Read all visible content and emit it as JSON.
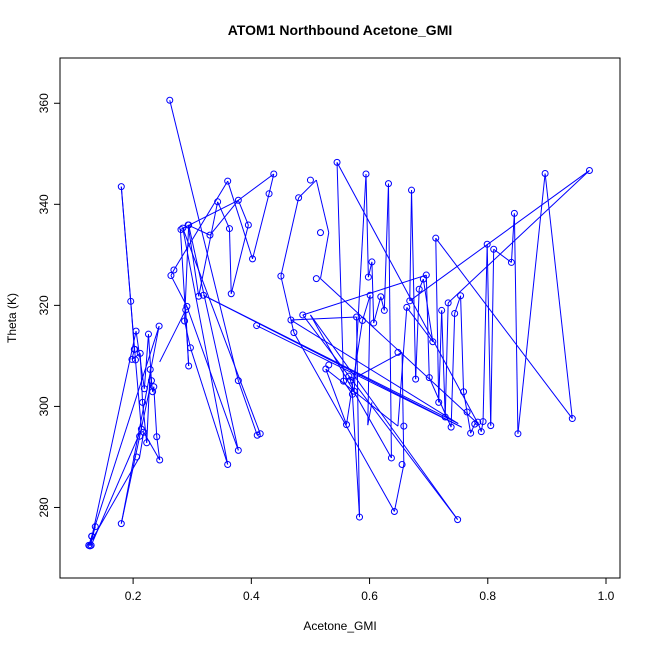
{
  "chart_data": {
    "type": "line",
    "title": "ATOM1 Northbound Acetone_GMI",
    "xlabel": "Acetone_GMI",
    "ylabel": "Theta (K)",
    "xlim": [
      0.1,
      1.0
    ],
    "ylim": [
      270,
      365
    ],
    "xticks": [
      0.2,
      0.4,
      0.6,
      0.8,
      1.0
    ],
    "xtick_labels": [
      "0.2",
      "0.4",
      "0.6",
      "0.8",
      "1.0"
    ],
    "yticks": [
      280,
      300,
      320,
      340,
      360
    ],
    "ytick_labels": [
      "280",
      "300",
      "320",
      "340",
      "360"
    ],
    "grid": false,
    "colors": {
      "series": "#0000ff",
      "axes": "#000000"
    },
    "series": [
      {
        "name": "",
        "marker": "open-circle",
        "x": [
          0.18,
          0.196,
          0.202,
          0.203,
          0.198,
          0.204,
          0.212,
          0.216,
          0.223,
          0.229,
          0.231,
          0.233,
          0.235,
          0.24,
          0.245,
          0.218,
          0.211,
          0.206,
          0.214,
          0.125,
          0.13,
          0.136,
          0.127,
          0.205,
          0.219,
          0.226,
          0.244,
          0.18,
          0.13,
          0.129
        ],
        "y": [
          343.5,
          320.8,
          311.3,
          311.3,
          309.3,
          309.2,
          310.5,
          300.8,
          292.8,
          307.3,
          305.1,
          302.9,
          303.9,
          294.0,
          289.4,
          294.9,
          294.1,
          290.0,
          295.5,
          272.5,
          274.3,
          276.2,
          272.4,
          314.9,
          303.5,
          314.3,
          315.9,
          276.8,
          274.3,
          272.5
        ]
      },
      {
        "name": "",
        "marker": "open-circle",
        "x": [
          0.262,
          0.378,
          0.41,
          0.415,
          0.36,
          0.378,
          0.36,
          0.264,
          0.269,
          0.284,
          0.287,
          0.291,
          0.297,
          0.294,
          0.311,
          0.294,
          0.281,
          0.289,
          0.293,
          0.319,
          0.33,
          0.343,
          0.363,
          0.378,
          0.395,
          0.402,
          0.409,
          0.43,
          0.438,
          0.366,
          0.45,
          0.467,
          0.472,
          0.48,
          0.487,
          0.5,
          0.51,
          0.517,
          0.526,
          0.531,
          0.545,
          0.556,
          0.561,
          0.565,
          0.568,
          0.571,
          0.574,
          0.578,
          0.583,
          0.588,
          0.594,
          0.598,
          0.601,
          0.604,
          0.607,
          0.619,
          0.625,
          0.632,
          0.637,
          0.642,
          0.648,
          0.655,
          0.658,
          0.663,
          0.668,
          0.671,
          0.678,
          0.684,
          0.691,
          0.696,
          0.701,
          0.707,
          0.712,
          0.717,
          0.722,
          0.728,
          0.733,
          0.738,
          0.744,
          0.749,
          0.754,
          0.759,
          0.765,
          0.771,
          0.778,
          0.783,
          0.789,
          0.792,
          0.799,
          0.805,
          0.81,
          0.84,
          0.845,
          0.851,
          0.897,
          0.943,
          0.972
        ],
        "y": [
          360.6,
          305.1,
          294.3,
          294.6,
          288.5,
          291.3,
          344.6,
          325.9,
          327.0,
          335.3,
          316.9,
          319.8,
          311.6,
          335.9,
          321.8,
          308.0,
          335.0,
          319.1,
          335.9,
          322.0,
          333.9,
          340.5,
          335.2,
          340.8,
          335.9,
          329.2,
          316.0,
          342.1,
          346.0,
          322.3,
          325.8,
          317.1,
          314.6,
          341.3,
          318.1,
          344.8,
          325.3,
          334.4,
          307.4,
          308.2,
          348.3,
          305.0,
          296.4,
          306.0,
          305.2,
          302.4,
          303.0,
          317.7,
          278.1,
          317.0,
          346.0,
          325.6,
          322.0,
          328.6,
          316.5,
          321.7,
          319.0,
          344.1,
          289.8,
          279.2,
          310.7,
          288.5,
          296.1,
          319.6,
          320.9,
          342.8,
          305.4,
          323.2,
          325.2,
          326.0,
          305.7,
          312.8,
          333.3,
          300.8,
          319.0,
          297.9,
          320.5,
          295.9,
          318.4,
          277.6,
          321.9,
          302.9,
          298.9,
          294.7,
          296.5,
          296.9,
          295.0,
          297.0,
          332.1,
          296.2,
          331.1,
          328.5,
          338.2,
          294.6,
          346.1,
          297.6,
          346.7
        ]
      }
    ],
    "segments": [
      [
        0.18,
        343.5,
        0.196,
        320.8
      ],
      [
        0.196,
        320.8,
        0.202,
        311.3
      ],
      [
        0.202,
        311.3,
        0.198,
        309.3
      ],
      [
        0.198,
        309.3,
        0.212,
        310.5
      ],
      [
        0.212,
        310.5,
        0.216,
        300.8
      ],
      [
        0.216,
        300.8,
        0.223,
        292.8
      ],
      [
        0.223,
        292.8,
        0.229,
        307.3
      ],
      [
        0.229,
        307.3,
        0.233,
        302.9
      ],
      [
        0.233,
        302.9,
        0.235,
        303.9
      ],
      [
        0.235,
        303.9,
        0.24,
        294.0
      ],
      [
        0.24,
        294.0,
        0.245,
        289.4
      ],
      [
        0.245,
        289.4,
        0.218,
        294.9
      ],
      [
        0.218,
        294.9,
        0.211,
        290.0
      ],
      [
        0.211,
        290.0,
        0.125,
        272.5
      ],
      [
        0.125,
        272.5,
        0.13,
        274.3
      ],
      [
        0.13,
        274.3,
        0.136,
        276.2
      ],
      [
        0.136,
        276.2,
        0.127,
        272.4
      ],
      [
        0.127,
        272.4,
        0.205,
        314.9
      ],
      [
        0.205,
        314.9,
        0.219,
        303.5
      ],
      [
        0.219,
        303.5,
        0.226,
        314.3
      ],
      [
        0.226,
        314.3,
        0.231,
        305.1
      ],
      [
        0.231,
        305.1,
        0.18,
        276.8
      ],
      [
        0.18,
        276.8,
        0.244,
        315.9
      ],
      [
        0.244,
        315.9,
        0.13,
        274.3
      ],
      [
        0.13,
        274.3,
        0.129,
        272.5
      ],
      [
        0.129,
        272.5,
        0.214,
        295.5
      ],
      [
        0.214,
        295.5,
        0.204,
        309.2
      ],
      [
        0.204,
        309.2,
        0.18,
        343.5
      ],
      [
        0.262,
        360.6,
        0.378,
        305.1
      ],
      [
        0.378,
        305.1,
        0.41,
        294.3
      ],
      [
        0.41,
        294.3,
        0.415,
        294.6
      ],
      [
        0.415,
        294.6,
        0.284,
        335.3
      ],
      [
        0.284,
        335.3,
        0.36,
        288.5
      ],
      [
        0.36,
        288.5,
        0.297,
        311.6
      ],
      [
        0.297,
        311.6,
        0.287,
        316.9
      ],
      [
        0.287,
        316.9,
        0.294,
        335.9
      ],
      [
        0.294,
        335.9,
        0.378,
        291.3
      ],
      [
        0.378,
        291.3,
        0.291,
        319.8
      ],
      [
        0.291,
        319.8,
        0.264,
        325.9
      ],
      [
        0.264,
        325.9,
        0.269,
        327.0
      ],
      [
        0.269,
        327.0,
        0.36,
        344.6
      ],
      [
        0.36,
        344.6,
        0.402,
        329.2
      ],
      [
        0.402,
        329.2,
        0.43,
        342.1
      ],
      [
        0.43,
        342.1,
        0.438,
        346.0
      ],
      [
        0.438,
        346.0,
        0.378,
        340.8
      ],
      [
        0.378,
        340.8,
        0.395,
        335.9
      ],
      [
        0.395,
        335.9,
        0.366,
        322.3
      ],
      [
        0.366,
        322.3,
        0.363,
        335.2
      ],
      [
        0.363,
        335.2,
        0.343,
        340.5
      ],
      [
        0.343,
        340.5,
        0.311,
        321.8
      ],
      [
        0.311,
        321.8,
        0.293,
        335.9
      ],
      [
        0.293,
        335.9,
        0.33,
        333.9
      ],
      [
        0.33,
        333.9,
        0.378,
        340.8
      ],
      [
        0.378,
        340.8,
        0.28,
        335.0
      ],
      [
        0.28,
        335.0,
        0.294,
        308.0
      ],
      [
        0.294,
        308.0,
        0.289,
        319.1
      ],
      [
        0.289,
        319.1,
        0.245,
        308.8
      ],
      [
        0.409,
        316.0,
        0.756,
        295.9
      ],
      [
        0.756,
        295.9,
        0.319,
        322.0
      ],
      [
        0.319,
        322.0,
        0.75,
        296.6
      ],
      [
        0.75,
        296.6,
        0.467,
        317.1
      ],
      [
        0.467,
        317.1,
        0.578,
        317.7
      ],
      [
        0.578,
        317.7,
        0.583,
        278.1
      ],
      [
        0.583,
        278.1,
        0.571,
        302.4
      ],
      [
        0.571,
        302.4,
        0.556,
        305.0
      ],
      [
        0.556,
        305.0,
        0.545,
        348.3
      ],
      [
        0.545,
        348.3,
        0.784,
        296.5
      ],
      [
        0.784,
        296.5,
        0.517,
        325.3
      ],
      [
        0.517,
        325.3,
        0.531,
        334.4
      ],
      [
        0.531,
        334.4,
        0.51,
        344.8
      ],
      [
        0.51,
        344.8,
        0.48,
        341.3
      ],
      [
        0.48,
        341.3,
        0.45,
        325.8
      ],
      [
        0.45,
        325.8,
        0.472,
        314.6
      ],
      [
        0.472,
        314.6,
        0.642,
        279.2
      ],
      [
        0.642,
        279.2,
        0.658,
        288.5
      ],
      [
        0.658,
        288.5,
        0.655,
        310.7
      ],
      [
        0.655,
        310.7,
        0.568,
        305.2
      ],
      [
        0.568,
        305.2,
        0.565,
        306.0
      ],
      [
        0.565,
        306.0,
        0.574,
        303.0
      ],
      [
        0.574,
        303.0,
        0.594,
        346.0
      ],
      [
        0.594,
        346.0,
        0.598,
        325.6
      ],
      [
        0.598,
        325.6,
        0.604,
        328.6
      ],
      [
        0.604,
        328.6,
        0.607,
        316.5
      ],
      [
        0.607,
        316.5,
        0.619,
        321.7
      ],
      [
        0.619,
        321.7,
        0.625,
        319.0
      ],
      [
        0.625,
        319.0,
        0.632,
        344.1
      ],
      [
        0.632,
        344.1,
        0.637,
        289.8
      ],
      [
        0.637,
        289.8,
        0.5,
        318.1
      ],
      [
        0.5,
        318.1,
        0.749,
        277.6
      ],
      [
        0.749,
        277.6,
        0.487,
        318.1
      ],
      [
        0.487,
        318.1,
        0.696,
        326.0
      ],
      [
        0.696,
        326.0,
        0.701,
        305.7
      ],
      [
        0.701,
        305.7,
        0.738,
        295.9
      ],
      [
        0.738,
        295.9,
        0.744,
        318.4
      ],
      [
        0.744,
        318.4,
        0.754,
        321.9
      ],
      [
        0.754,
        321.9,
        0.759,
        302.9
      ],
      [
        0.759,
        302.9,
        0.765,
        298.9
      ],
      [
        0.765,
        298.9,
        0.771,
        294.7
      ],
      [
        0.771,
        294.7,
        0.778,
        296.5
      ],
      [
        0.778,
        296.5,
        0.783,
        296.9
      ],
      [
        0.783,
        296.9,
        0.789,
        295.0
      ],
      [
        0.789,
        295.0,
        0.792,
        297.0
      ],
      [
        0.792,
        297.0,
        0.799,
        332.1
      ],
      [
        0.799,
        332.1,
        0.805,
        296.2
      ],
      [
        0.805,
        296.2,
        0.81,
        331.1
      ],
      [
        0.81,
        331.1,
        0.84,
        328.5
      ],
      [
        0.84,
        328.5,
        0.845,
        338.2
      ],
      [
        0.845,
        338.2,
        0.851,
        294.6
      ],
      [
        0.851,
        294.6,
        0.897,
        346.1
      ],
      [
        0.897,
        346.1,
        0.943,
        297.6
      ],
      [
        0.943,
        297.6,
        0.712,
        333.3
      ],
      [
        0.712,
        333.3,
        0.717,
        300.8
      ],
      [
        0.717,
        300.8,
        0.722,
        319.0
      ],
      [
        0.722,
        319.0,
        0.728,
        297.9
      ],
      [
        0.728,
        297.9,
        0.733,
        320.5
      ],
      [
        0.733,
        320.5,
        0.972,
        346.7
      ],
      [
        0.972,
        346.7,
        0.668,
        320.9
      ],
      [
        0.668,
        320.9,
        0.671,
        342.8
      ],
      [
        0.671,
        342.8,
        0.678,
        305.4
      ],
      [
        0.678,
        305.4,
        0.684,
        323.2
      ],
      [
        0.684,
        323.2,
        0.691,
        325.2
      ],
      [
        0.691,
        325.2,
        0.707,
        312.8
      ],
      [
        0.707,
        312.8,
        0.663,
        319.6
      ],
      [
        0.663,
        319.6,
        0.648,
        296.1
      ],
      [
        0.648,
        296.1,
        0.526,
        307.4
      ],
      [
        0.526,
        307.4,
        0.561,
        296.4
      ],
      [
        0.561,
        296.4,
        0.588,
        317.0
      ],
      [
        0.588,
        317.0,
        0.601,
        322.0
      ],
      [
        0.601,
        322.0,
        0.597,
        296.3
      ],
      [
        0.597,
        296.3,
        0.604,
        300.8
      ]
    ]
  }
}
